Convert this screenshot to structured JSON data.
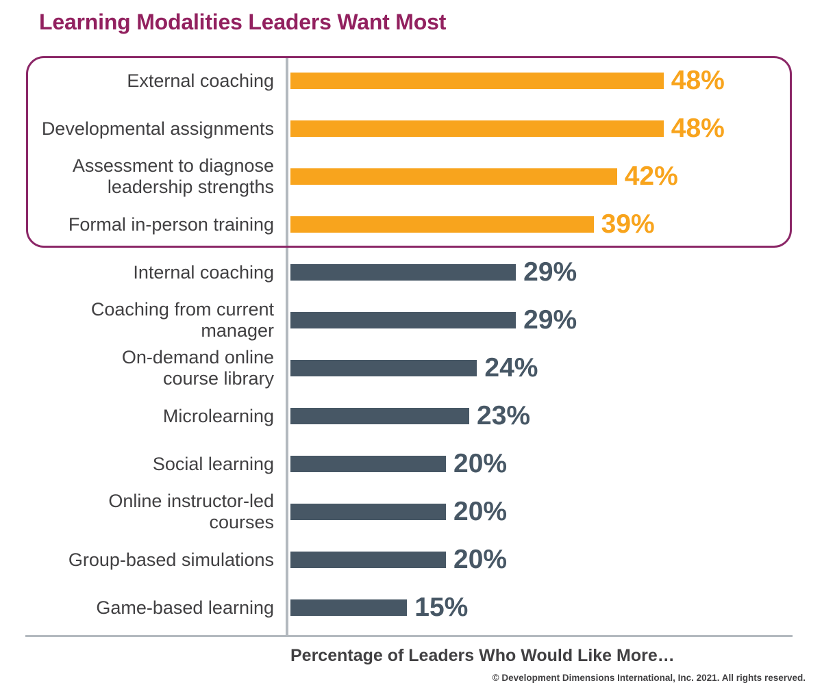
{
  "page": {
    "title": "Learning Modalities Leaders Want Most",
    "xlabel": "Percentage of Leaders Who Would Like More…",
    "copyright": "© Development Dimensions International, Inc. 2021. All rights reserved."
  },
  "colors": {
    "title_text": "#92215F",
    "highlight_box_border": "#8B2767",
    "highlight_bar": "#F8A41D",
    "standard_bar": "#475765",
    "label_text": "#414042",
    "axis_line": "#B3B9BF",
    "background": "#FFFFFF"
  },
  "chart_data": {
    "type": "bar",
    "orientation": "horizontal",
    "title": "Learning Modalities Leaders Want Most",
    "xlabel": "Percentage of Leaders Who Would Like More…",
    "value_unit": "%",
    "xlim": [
      0,
      50
    ],
    "grid": false,
    "legend": false,
    "annotation": "Top four modalities are drawn in orange and enclosed in a plum rounded outline",
    "items": [
      {
        "label": "External coaching",
        "lines": [
          "External coaching"
        ],
        "value": 48,
        "highlight": true
      },
      {
        "label": "Developmental assignments",
        "lines": [
          "Developmental assignments"
        ],
        "value": 48,
        "highlight": true
      },
      {
        "label": "Assessment to diagnose leadership strengths",
        "lines": [
          "Assessment to diagnose",
          "leadership strengths"
        ],
        "value": 42,
        "highlight": true
      },
      {
        "label": "Formal in-person training",
        "lines": [
          "Formal in-person training"
        ],
        "value": 39,
        "highlight": true
      },
      {
        "label": "Internal coaching",
        "lines": [
          "Internal coaching"
        ],
        "value": 29,
        "highlight": false
      },
      {
        "label": "Coaching from current manager",
        "lines": [
          "Coaching from current",
          "manager"
        ],
        "value": 29,
        "highlight": false
      },
      {
        "label": "On-demand online course library",
        "lines": [
          "On-demand online",
          "course library"
        ],
        "value": 24,
        "highlight": false
      },
      {
        "label": "Microlearning",
        "lines": [
          "Microlearning"
        ],
        "value": 23,
        "highlight": false
      },
      {
        "label": "Social learning",
        "lines": [
          "Social learning"
        ],
        "value": 20,
        "highlight": false
      },
      {
        "label": "Online instructor-led courses",
        "lines": [
          "Online instructor-led",
          "courses"
        ],
        "value": 20,
        "highlight": false
      },
      {
        "label": "Group-based simulations",
        "lines": [
          "Group-based simulations"
        ],
        "value": 20,
        "highlight": false
      },
      {
        "label": "Game-based learning",
        "lines": [
          "Game-based learning"
        ],
        "value": 15,
        "highlight": false
      }
    ]
  }
}
